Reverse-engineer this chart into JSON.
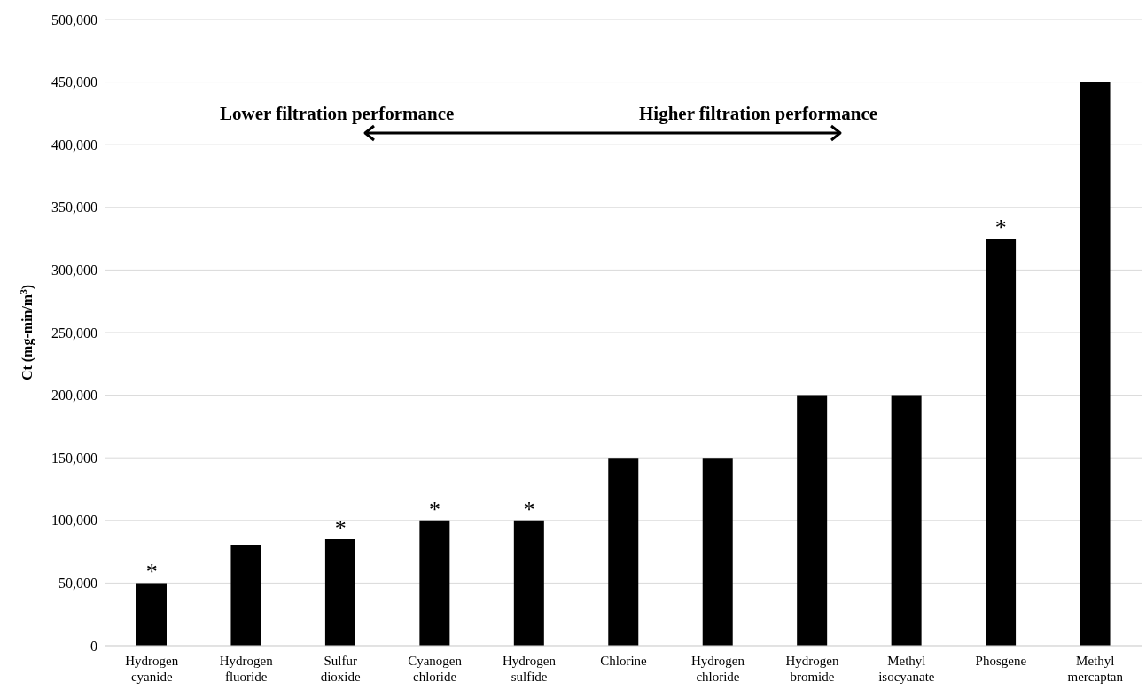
{
  "chart_data": {
    "type": "bar",
    "ylabel": "Ct (mg-min/m$^{3}$)",
    "categories": [
      "Hydrogen cyanide",
      "Hydrogen fluoride",
      "Sulfur dioxide",
      "Cyanogen chloride",
      "Hydrogen sulfide",
      "Chlorine",
      "Hydrogen chloride",
      "Hydrogen bromide",
      "Methyl isocyanate",
      "Phosgene",
      "Methyl mercaptan"
    ],
    "values": [
      50000,
      80000,
      85000,
      100000,
      100000,
      150000,
      150000,
      200000,
      200000,
      325000,
      450000
    ],
    "color": "#000000",
    "ylim": [
      0,
      500000
    ],
    "yticks": [
      0,
      {
        "value": 50000,
        "label": "50,000"
      },
      {
        "value": 100000,
        "label": "100,000"
      },
      {
        "value": 150000,
        "label": "150,000"
      },
      {
        "value": 200000,
        "label": "200,000"
      },
      {
        "value": 250000,
        "label": "250,000"
      },
      {
        "value": 300000,
        "label": "300,000"
      },
      {
        "value": 350000,
        "label": "350,000"
      },
      {
        "value": 400000,
        "label": "400,000"
      },
      {
        "value": 450000,
        "label": "450,000"
      },
      {
        "value": 500000,
        "label": "500,000"
      }
    ],
    "grid": "y",
    "legend": false,
    "annotations": [
      {
        "text": "*",
        "x": "Hydrogen cyanide",
        "y": 50000
      },
      {
        "text": "*",
        "x": "Sulfur dioxide",
        "y": 85000
      },
      {
        "text": "*",
        "x": "Cyanogen chloride",
        "y": 100000
      },
      {
        "text": "*",
        "x": "Hydrogen sulfide",
        "y": 100000
      },
      {
        "text": "*",
        "x": "Phosgene",
        "y": 325000
      },
      "Lower filtration performance",
      "Higher filtration performance"
    ]
  }
}
